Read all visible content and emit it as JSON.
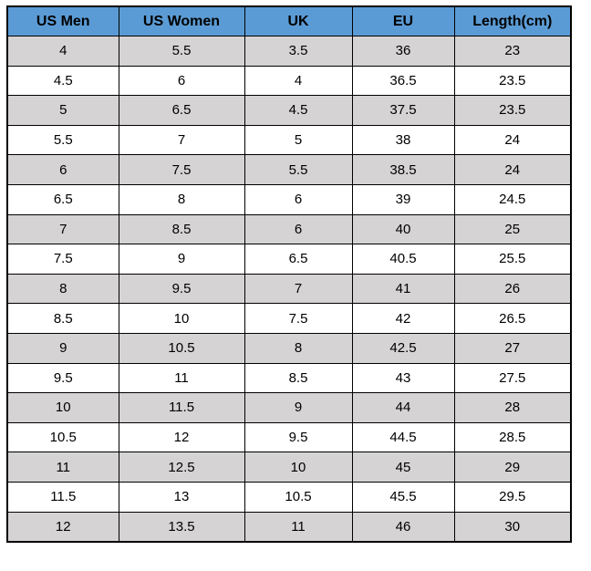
{
  "colors": {
    "header_bg": "#5B9BD5",
    "header_text": "#000000",
    "row_bg": "#FFFFFF",
    "row_alt_bg": "#D5D3D3",
    "cell_text": "#000000",
    "border": "#000000",
    "page_bg": "#FFFFFF"
  },
  "chart_data": {
    "type": "table",
    "columns": [
      "US Men",
      "US Women",
      "UK",
      "EU",
      "Length(cm)"
    ],
    "rows": [
      [
        "4",
        "5.5",
        "3.5",
        "36",
        "23"
      ],
      [
        "4.5",
        "6",
        "4",
        "36.5",
        "23.5"
      ],
      [
        "5",
        "6.5",
        "4.5",
        "37.5",
        "23.5"
      ],
      [
        "5.5",
        "7",
        "5",
        "38",
        "24"
      ],
      [
        "6",
        "7.5",
        "5.5",
        "38.5",
        "24"
      ],
      [
        "6.5",
        "8",
        "6",
        "39",
        "24.5"
      ],
      [
        "7",
        "8.5",
        "6",
        "40",
        "25"
      ],
      [
        "7.5",
        "9",
        "6.5",
        "40.5",
        "25.5"
      ],
      [
        "8",
        "9.5",
        "7",
        "41",
        "26"
      ],
      [
        "8.5",
        "10",
        "7.5",
        "42",
        "26.5"
      ],
      [
        "9",
        "10.5",
        "8",
        "42.5",
        "27"
      ],
      [
        "9.5",
        "11",
        "8.5",
        "43",
        "27.5"
      ],
      [
        "10",
        "11.5",
        "9",
        "44",
        "28"
      ],
      [
        "10.5",
        "12",
        "9.5",
        "44.5",
        "28.5"
      ],
      [
        "11",
        "12.5",
        "10",
        "45",
        "29"
      ],
      [
        "11.5",
        "13",
        "10.5",
        "45.5",
        "29.5"
      ],
      [
        "12",
        "13.5",
        "11",
        "46",
        "30"
      ]
    ]
  }
}
